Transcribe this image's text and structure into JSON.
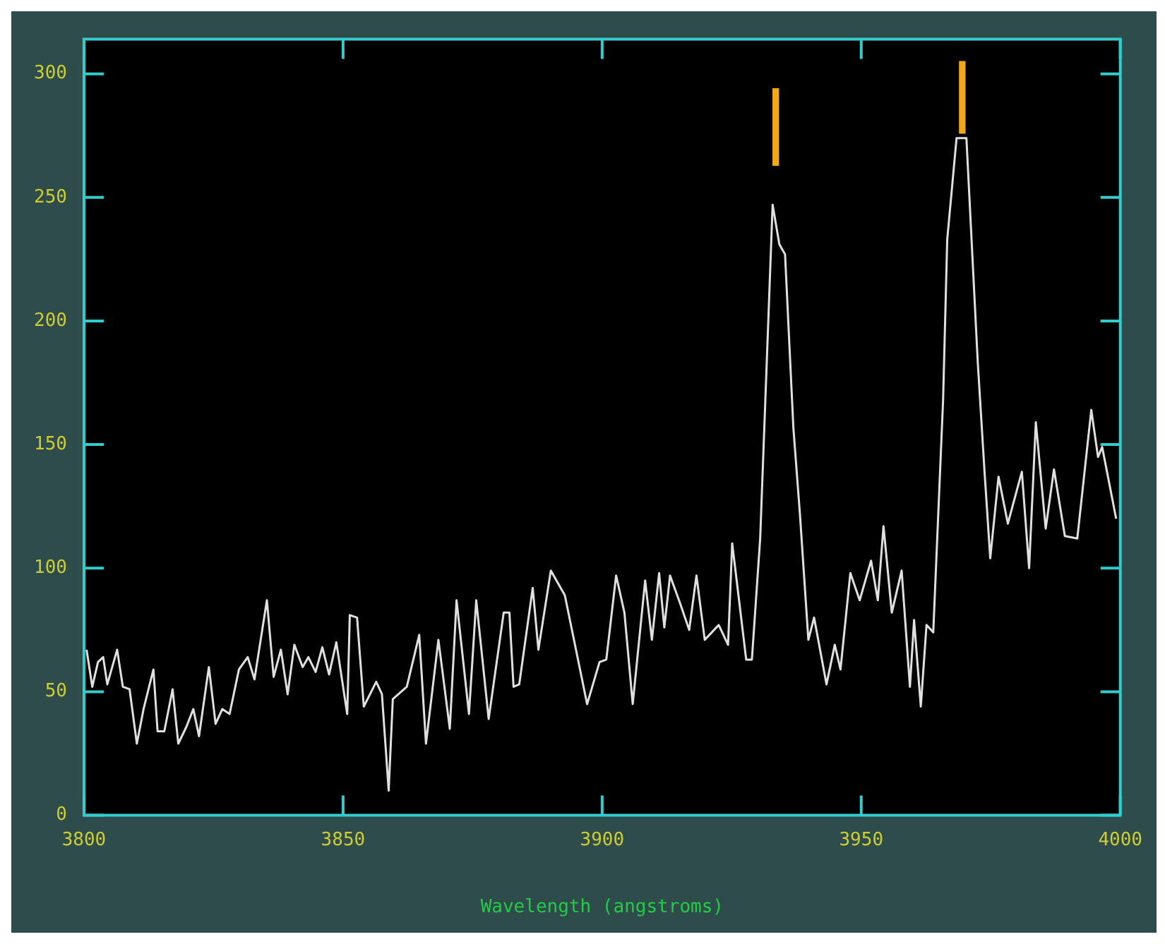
{
  "chart_data": {
    "type": "line",
    "xlabel": "Wavelength (angstroms)",
    "xlim": [
      3800,
      4000
    ],
    "xticks": [
      3800,
      3850,
      3900,
      3950,
      4000
    ],
    "ylim": [
      0,
      314
    ],
    "yticks": [
      0,
      50,
      100,
      150,
      200,
      250,
      300
    ],
    "marker": "none",
    "line_style": "solid",
    "x": [
      3800.5,
      3801.6,
      3802.7,
      3803.7,
      3804.5,
      3806.4,
      3807.5,
      3808.8,
      3810.2,
      3811.5,
      3813.4,
      3814.2,
      3815.5,
      3817.1,
      3818.2,
      3819.8,
      3821.1,
      3822.2,
      3824.1,
      3825.4,
      3826.7,
      3828.1,
      3829.9,
      3831.6,
      3832.9,
      3835.3,
      3836.6,
      3838,
      3839.3,
      3840.6,
      3842.2,
      3843.3,
      3844.7,
      3846,
      3847.3,
      3848.7,
      3850.8,
      3851.3,
      3852.7,
      3854,
      3856.4,
      3857.5,
      3858.8,
      3859.6,
      3862.3,
      3864.7,
      3866,
      3868.4,
      3870.6,
      3871.9,
      3874.3,
      3875.7,
      3878.1,
      3881,
      3882.1,
      3882.9,
      3884,
      3886.6,
      3887.7,
      3890.1,
      3892.8,
      3897.1,
      3899.5,
      3900.8,
      3902.7,
      3904.3,
      3905.9,
      3908.3,
      3909.6,
      3911,
      3912,
      3913.1,
      3915,
      3916.8,
      3918.2,
      3919.8,
      3922.5,
      3924.3,
      3925.1,
      3927.8,
      3928.9,
      3930.5,
      3932.9,
      3934.2,
      3935.3,
      3936.9,
      3938.2,
      3939.8,
      3940.9,
      3943.3,
      3944.9,
      3946,
      3947.9,
      3949.7,
      3951.9,
      3953.2,
      3954.3,
      3955.9,
      3957.8,
      3959.4,
      3960.2,
      3961.5,
      3962.6,
      3963.9,
      3965.8,
      3966.6,
      3968.4,
      3970.3,
      3972.5,
      3973.8,
      3974.9,
      3976.5,
      3978.3,
      3981,
      3982.4,
      3983.7,
      3985.6,
      3987.2,
      3989.3,
      3991.7,
      3994.4,
      3995.7,
      3996.5,
      3999.2
    ],
    "series": [
      {
        "color": "#e0e0e0",
        "values": [
          67,
          52,
          62,
          64,
          53,
          67,
          52,
          51,
          29,
          43,
          59,
          34,
          34,
          51,
          29,
          36,
          43,
          32,
          60,
          37,
          43,
          41,
          59,
          64,
          55,
          87,
          56,
          67,
          49,
          69,
          60,
          64,
          58,
          68,
          57,
          70,
          41,
          81,
          80,
          44,
          54,
          49,
          10,
          47,
          52,
          73,
          29,
          71,
          35,
          87,
          41,
          87,
          39,
          82,
          82,
          52,
          53,
          92,
          67,
          99,
          89,
          45,
          62,
          63,
          97,
          82,
          45,
          95,
          71,
          98,
          76,
          97,
          86,
          75,
          97,
          71,
          77,
          69,
          110,
          63,
          63,
          112,
          247,
          231,
          227,
          157,
          121,
          71,
          80,
          53,
          69,
          59,
          98,
          87,
          103,
          87,
          117,
          82,
          99,
          52,
          79,
          44,
          77,
          74,
          168,
          233,
          274,
          274,
          183,
          139,
          104,
          137,
          118,
          139,
          100,
          159,
          116,
          140,
          113,
          112,
          164,
          145,
          149,
          120
        ]
      },
      {
        "type": "bar",
        "color": "#f0a818",
        "x": [
          3933.5,
          3969.5
        ],
        "base": [
          263,
          276
        ],
        "values": [
          31,
          29
        ]
      }
    ]
  }
}
